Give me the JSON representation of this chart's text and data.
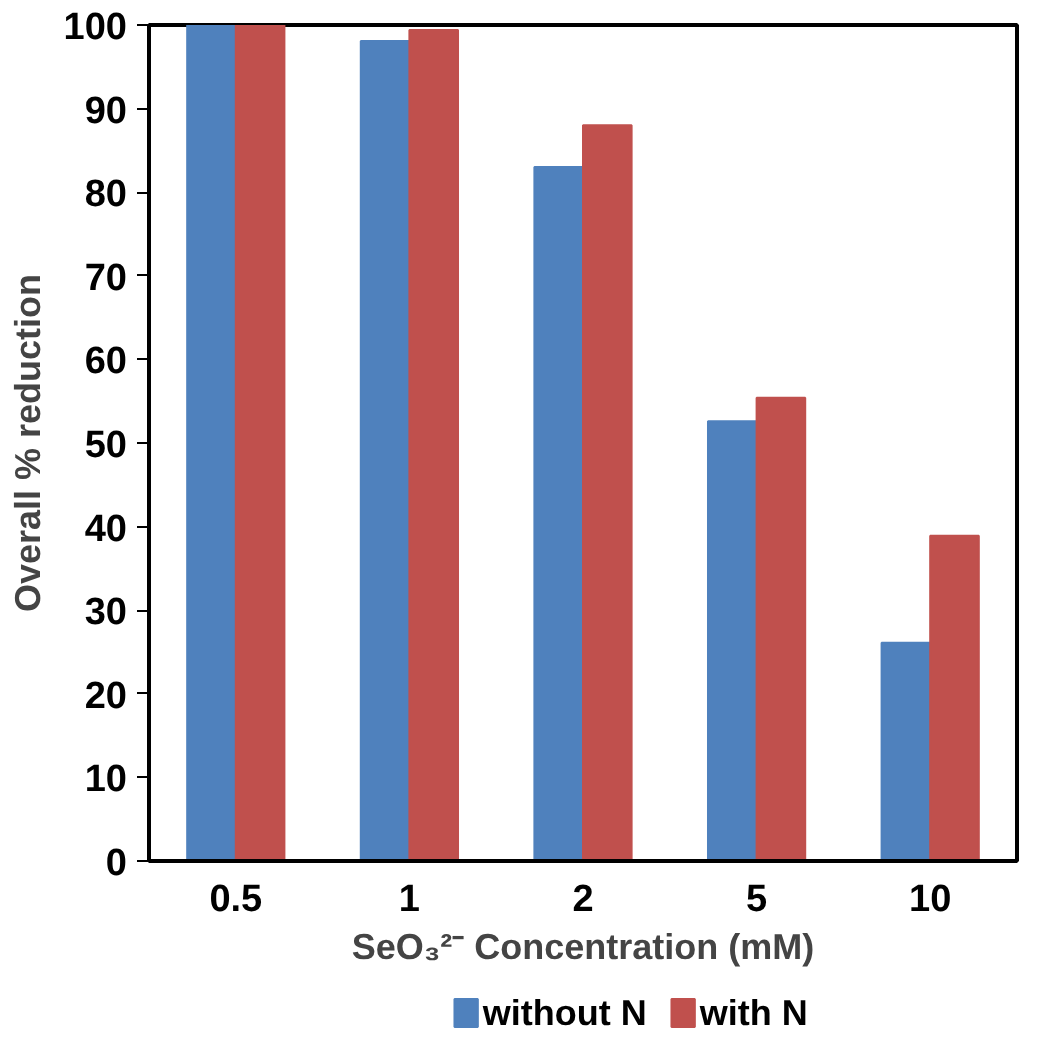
{
  "chart_data": {
    "type": "bar",
    "xlabel": "SeO₃²⁻ Concentration (mM)",
    "ylabel": "Overall % reduction",
    "categories": [
      "0.5",
      "1",
      "2",
      "5",
      "10"
    ],
    "series": [
      {
        "name": "without N",
        "color": "#4f81bd",
        "values": [
          100,
          98.1,
          83,
          52.6,
          26.1
        ]
      },
      {
        "name": "with N",
        "color": "#c0504d",
        "values": [
          100,
          99.4,
          88,
          55.4,
          38.9
        ]
      }
    ],
    "ylim": [
      0,
      100
    ],
    "yticks": [
      0,
      10,
      20,
      30,
      40,
      50,
      60,
      70,
      80,
      90,
      100
    ],
    "grid": false,
    "legend": "bottom"
  }
}
